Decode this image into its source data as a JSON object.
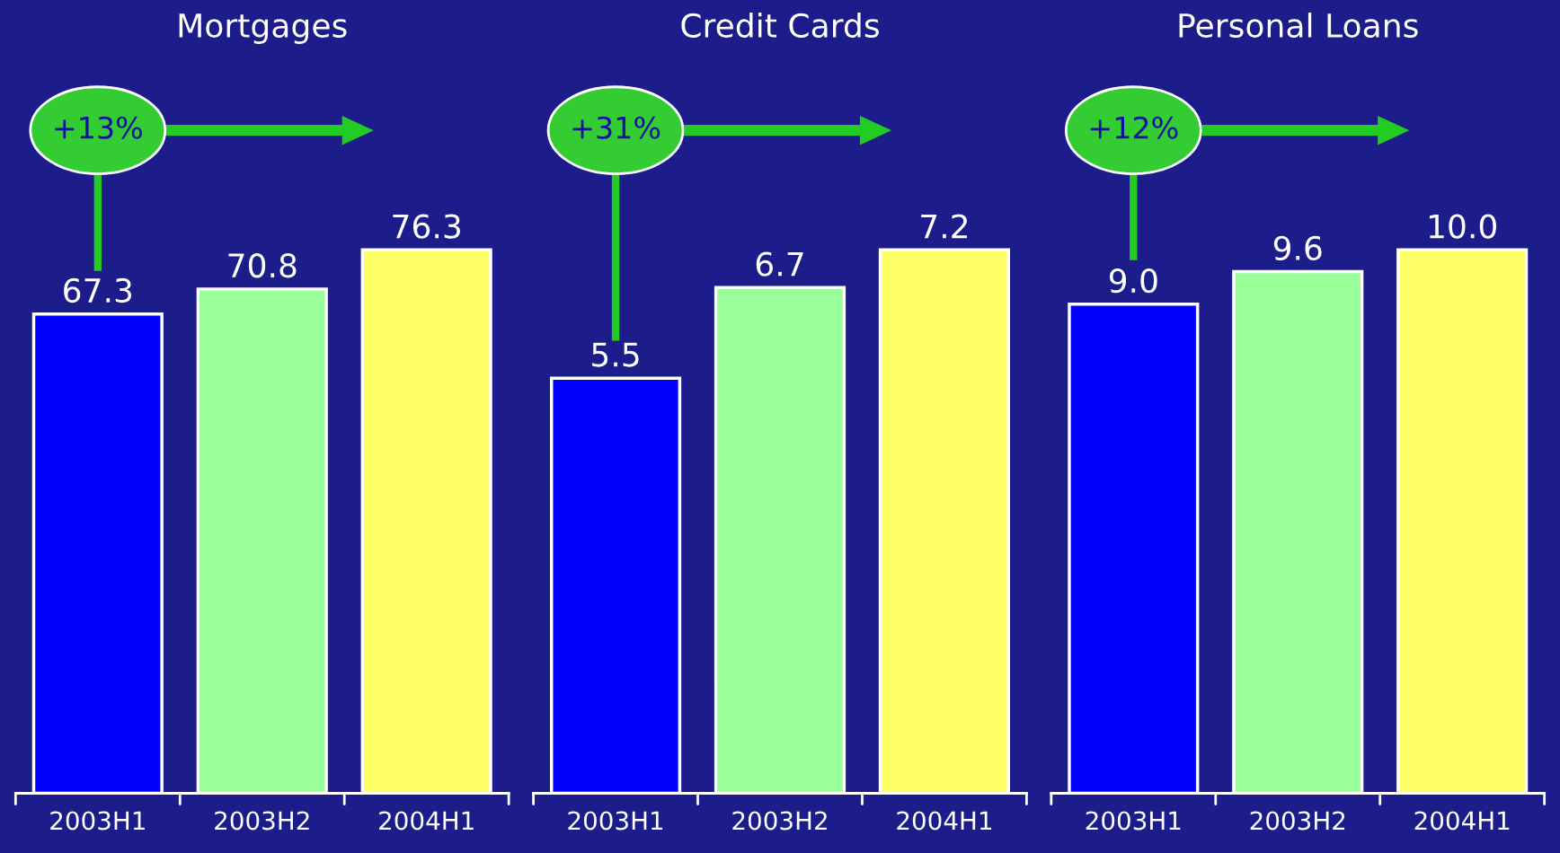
{
  "chart_data": [
    {
      "type": "bar",
      "title": "Mortgages",
      "categories": [
        "2003H1",
        "2003H2",
        "2004H1"
      ],
      "values": [
        67.3,
        70.8,
        76.3
      ],
      "colors": [
        "#0000ff",
        "#99ff99",
        "#ffff66"
      ],
      "data_labels": true,
      "tick_labels": "x",
      "annotations": [
        "+13%"
      ]
    },
    {
      "type": "bar",
      "title": "Credit Cards",
      "categories": [
        "2003H1",
        "2003H2",
        "2004H1"
      ],
      "values": [
        5.5,
        6.7,
        7.2
      ],
      "colors": [
        "#0000ff",
        "#99ff99",
        "#ffff66"
      ],
      "data_labels": true,
      "tick_labels": "x",
      "annotations": [
        "+31%"
      ]
    },
    {
      "type": "bar",
      "title": "Personal Loans",
      "categories": [
        "2003H1",
        "2003H2",
        "2004H1"
      ],
      "values": [
        9.0,
        9.6,
        10.0
      ],
      "value_labels": [
        "9.0",
        "9.6",
        "10.0"
      ],
      "colors": [
        "#0000ff",
        "#99ff99",
        "#ffff66"
      ],
      "tick_labels": "x",
      "annotations": [
        "+12%"
      ]
    }
  ]
}
